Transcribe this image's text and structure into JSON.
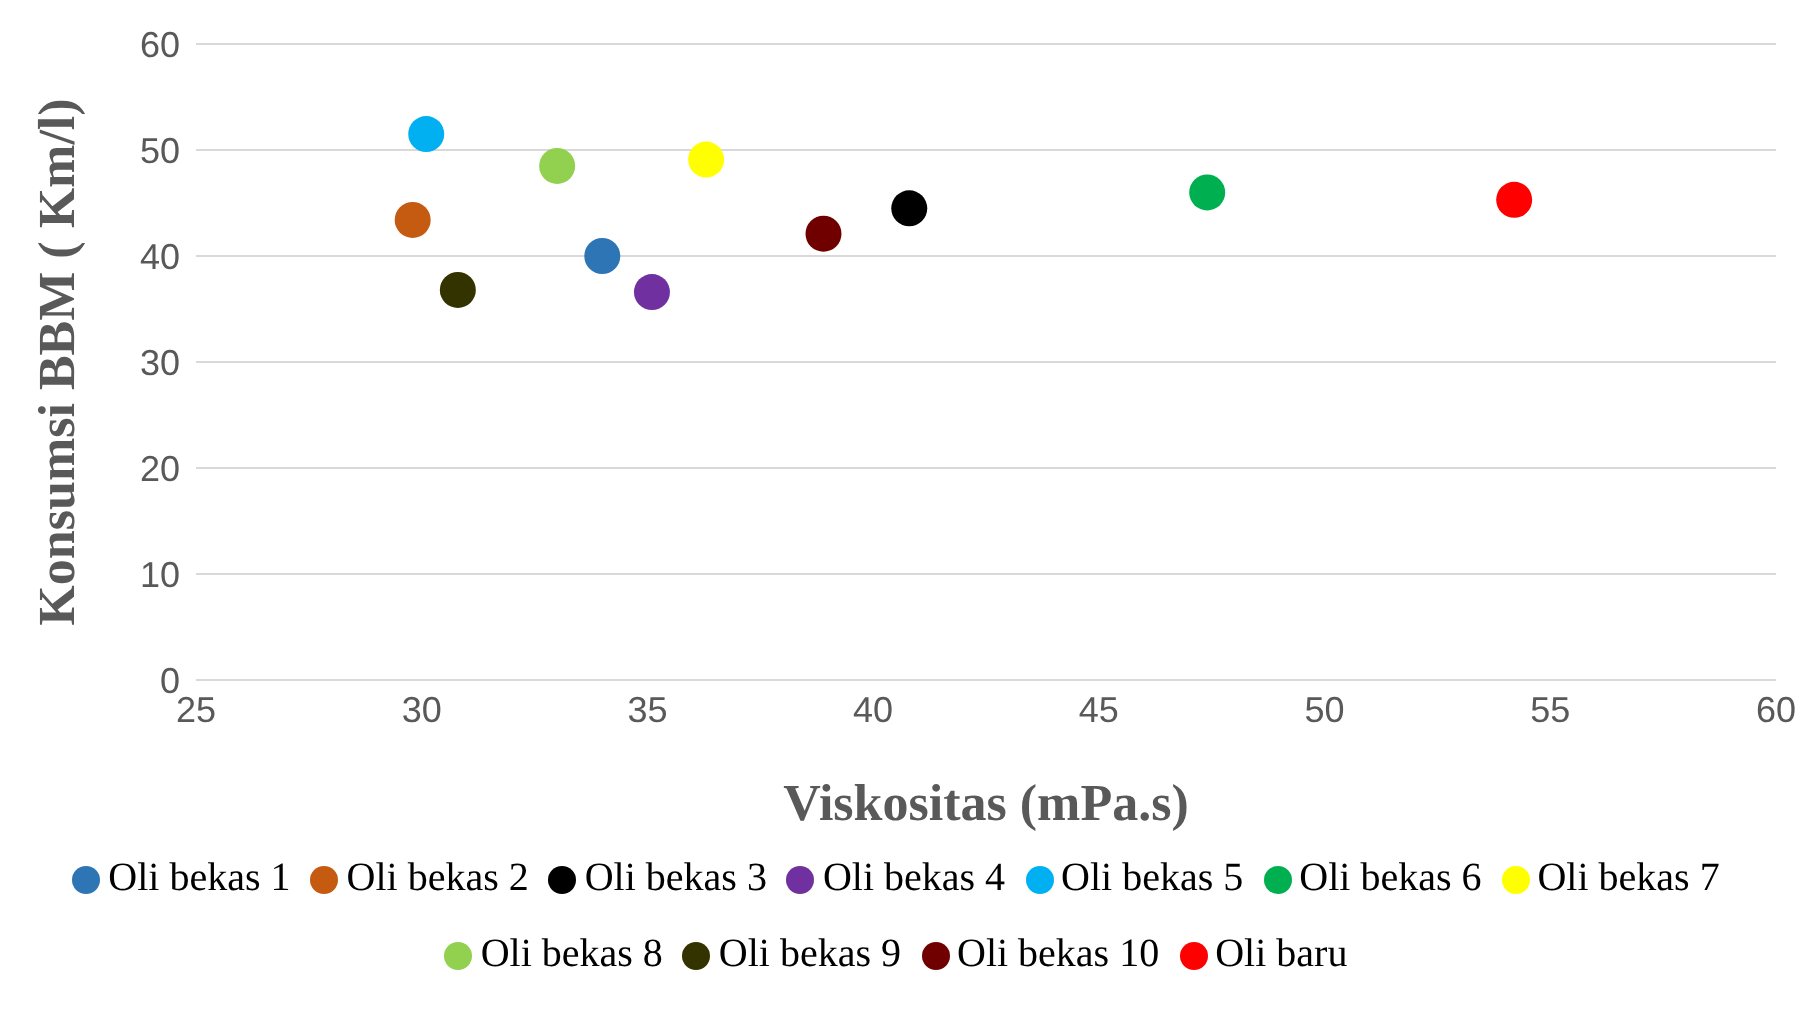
{
  "chart_data": {
    "type": "scatter",
    "xlabel": "Viskositas (mPa.s)",
    "ylabel": "Konsumsi BBM ( Km/l)",
    "xlim": [
      25,
      60
    ],
    "xticks": [
      25,
      30,
      35,
      40,
      45,
      50,
      55,
      60
    ],
    "ylim": [
      0,
      60
    ],
    "yticks": [
      0,
      10,
      20,
      30,
      40,
      50,
      60
    ],
    "grid": "y",
    "legend": "bottom",
    "marker": "circle",
    "series": [
      {
        "name": "Oli bekas 1",
        "color": "#2e75b6",
        "x": [
          34.0
        ],
        "values": [
          40.0
        ]
      },
      {
        "name": "Oli bekas 2",
        "color": "#c55a11",
        "x": [
          29.8
        ],
        "values": [
          43.4
        ]
      },
      {
        "name": "Oli bekas 3",
        "color": "#000000",
        "x": [
          40.8
        ],
        "values": [
          44.5
        ]
      },
      {
        "name": "Oli bekas 4",
        "color": "#7030a0",
        "x": [
          35.1
        ],
        "values": [
          36.6
        ]
      },
      {
        "name": "Oli bekas 5",
        "color": "#00b0f0",
        "x": [
          30.1
        ],
        "values": [
          51.5
        ]
      },
      {
        "name": "Oli bekas 6",
        "color": "#00b050",
        "x": [
          47.4
        ],
        "values": [
          46.0
        ]
      },
      {
        "name": "Oli bekas 7",
        "color": "#ffff00",
        "x": [
          36.3
        ],
        "values": [
          49.1
        ]
      },
      {
        "name": "Oli bekas 8",
        "color": "#92d050",
        "x": [
          33.0
        ],
        "values": [
          48.5
        ]
      },
      {
        "name": "Oli bekas 9",
        "color": "#333300",
        "x": [
          30.8
        ],
        "values": [
          36.8
        ]
      },
      {
        "name": "Oli bekas 10",
        "color": "#700000",
        "x": [
          38.9
        ],
        "values": [
          42.1
        ]
      },
      {
        "name": "Oli baru",
        "color": "#ff0000",
        "x": [
          54.2
        ],
        "values": [
          45.3
        ]
      }
    ]
  }
}
